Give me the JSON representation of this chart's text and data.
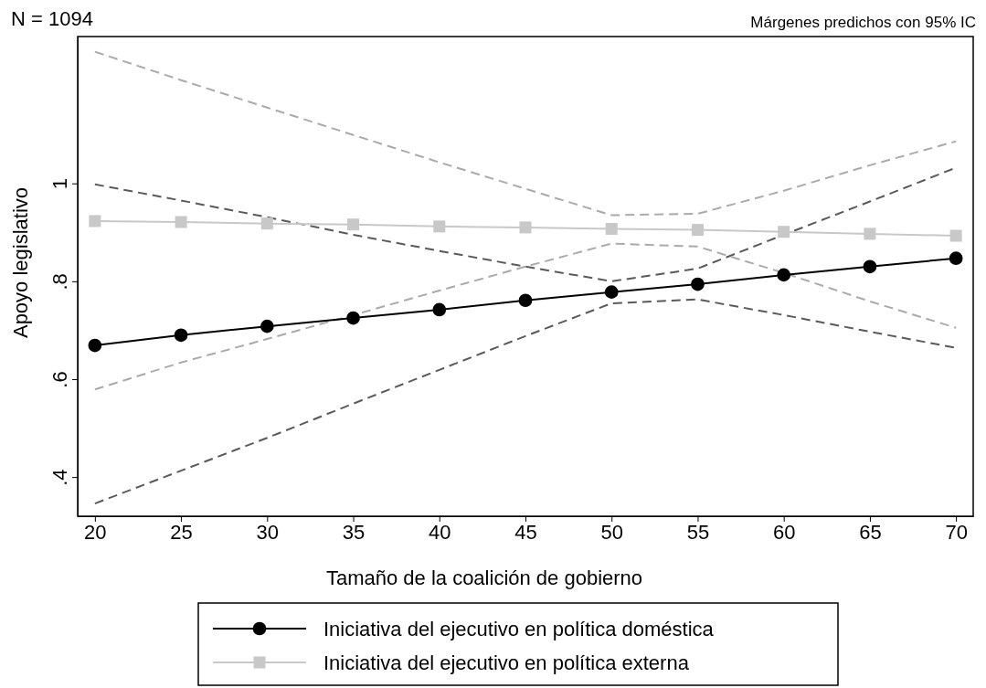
{
  "chart_data": {
    "type": "line",
    "xlabel": "Tamaño de la coalición de gobierno",
    "ylabel": "Apoyo legislativo",
    "x": [
      20,
      25,
      30,
      35,
      40,
      45,
      50,
      55,
      60,
      65,
      70
    ],
    "xlim": [
      19,
      71
    ],
    "xticks": [
      20,
      25,
      30,
      35,
      40,
      45,
      50,
      55,
      60,
      65,
      70
    ],
    "ylim": [
      0.32,
      1.3
    ],
    "yticks": [
      {
        "value": 0.4,
        "label": ".4"
      },
      {
        "value": 0.6,
        "label": ".6"
      },
      {
        "value": 0.8,
        "label": ".8"
      },
      {
        "value": 1,
        "label": "1"
      }
    ],
    "grid": false,
    "legend": "bottom",
    "line_style": "solid",
    "annotations": [
      "N = 1094",
      "Márgenes predichos con 95% IC"
    ],
    "series": [
      {
        "color": "#5a5a5a",
        "line_style": "dashed",
        "marker": "none",
        "values": [
          0.346,
          0.413,
          0.48,
          0.55,
          0.619,
          0.688,
          0.755,
          0.763,
          0.731,
          0.697,
          0.664
        ]
      },
      {
        "color": "#5a5a5a",
        "line_style": "dashed",
        "marker": "none",
        "values": [
          0.998,
          0.965,
          0.931,
          0.895,
          0.862,
          0.83,
          0.8,
          0.826,
          0.895,
          0.963,
          1.032
        ]
      },
      {
        "color": "#aaaaaa",
        "line_style": "dashed",
        "marker": "none",
        "values": [
          0.579,
          0.634,
          0.682,
          0.731,
          0.781,
          0.83,
          0.877,
          0.871,
          0.817,
          0.759,
          0.705
        ]
      },
      {
        "color": "#aaaaaa",
        "line_style": "dashed",
        "marker": "none",
        "values": [
          1.269,
          1.211,
          1.155,
          1.099,
          1.043,
          0.989,
          0.935,
          0.938,
          0.985,
          1.037,
          1.086
        ]
      },
      {
        "name": "Iniciativa del ejecutivo en política doméstica",
        "color": "#000000",
        "marker": "circle",
        "values": [
          0.669,
          0.69,
          0.708,
          0.725,
          0.742,
          0.761,
          0.778,
          0.794,
          0.813,
          0.83,
          0.847
        ]
      },
      {
        "name": "Iniciativa del ejecutivo en política externa",
        "color": "#c8c8c8",
        "marker": "square",
        "values": [
          0.923,
          0.921,
          0.918,
          0.916,
          0.912,
          0.91,
          0.907,
          0.905,
          0.901,
          0.897,
          0.893
        ]
      }
    ]
  }
}
